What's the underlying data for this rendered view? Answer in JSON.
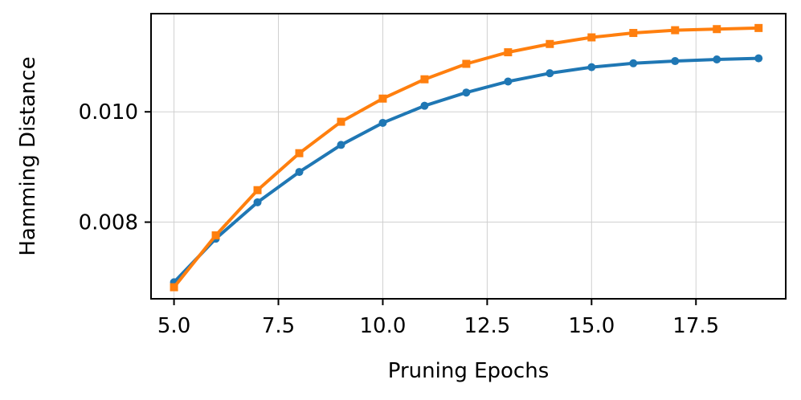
{
  "chart_data": {
    "type": "line",
    "title": "",
    "xlabel": "Pruning Epochs",
    "ylabel": "Hamming Distance",
    "xlim": [
      4.45,
      19.65
    ],
    "ylim": [
      0.00661,
      0.01178
    ],
    "grid": true,
    "x": [
      5,
      6,
      7,
      8,
      9,
      10,
      11,
      12,
      13,
      14,
      15,
      16,
      17,
      18,
      19
    ],
    "x_ticks": [
      5.0,
      7.5,
      10.0,
      12.5,
      15.0,
      17.5
    ],
    "x_tick_labels": [
      "5.0",
      "7.5",
      "10.0",
      "12.5",
      "15.0",
      "17.5"
    ],
    "y_ticks": [
      0.008,
      0.01
    ],
    "y_tick_labels": [
      "0.008",
      "0.010"
    ],
    "series": [
      {
        "color": "#1f77b4",
        "marker": "circle",
        "values": [
          0.00691,
          0.0077,
          0.00836,
          0.00891,
          0.0094,
          0.0098,
          0.01011,
          0.01035,
          0.01055,
          0.0107,
          0.01081,
          0.01088,
          0.01092,
          0.01095,
          0.01097
        ]
      },
      {
        "color": "#ff7f0e",
        "marker": "square",
        "values": [
          0.00682,
          0.00776,
          0.00858,
          0.00925,
          0.00982,
          0.01024,
          0.01059,
          0.01087,
          0.01108,
          0.01123,
          0.01135,
          0.01143,
          0.01148,
          0.0115,
          0.01152
        ]
      }
    ]
  }
}
